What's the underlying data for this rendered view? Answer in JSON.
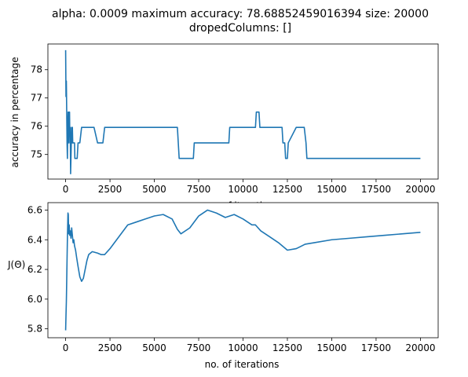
{
  "figure": {
    "title_line1": "alpha: 0.0009 maximum accuracy: 78.68852459016394 size: 20000",
    "title_line2": "dropedColumns: []"
  },
  "chart_data": [
    {
      "type": "line",
      "xlabel": "no. of iterations",
      "ylabel": "accuracy in percentage",
      "xlim": [
        -1000,
        21000
      ],
      "ylim": [
        74.13,
        78.91
      ],
      "xticks": [
        0,
        2500,
        5000,
        7500,
        10000,
        12500,
        15000,
        17500,
        20000
      ],
      "xtick_labels": [
        "0",
        "2500",
        "5000",
        "7500",
        "10000",
        "12500",
        "15000",
        "17500",
        "20000"
      ],
      "yticks": [
        75,
        76,
        77,
        78
      ],
      "ytick_labels": [
        "75",
        "76",
        "77",
        "78"
      ],
      "grid": false,
      "color": "#1f77b4",
      "series": [
        {
          "x": [
            0,
            20,
            40,
            60,
            80,
            100,
            120,
            140,
            160,
            180,
            200,
            220,
            240,
            260,
            280,
            300,
            320,
            340,
            360,
            380,
            400,
            420,
            440,
            460,
            480,
            500,
            520,
            560,
            600,
            650,
            700,
            750,
            800,
            900,
            1000,
            1100,
            1200,
            1400,
            1600,
            1800,
            1900,
            2000,
            2100,
            2200,
            3000,
            4000,
            5000,
            6000,
            6300,
            6350,
            6400,
            7000,
            7200,
            7250,
            8000,
            9000,
            9200,
            9250,
            10000,
            10700,
            10750,
            10900,
            10950,
            11500,
            12200,
            12250,
            12350,
            12400,
            12500,
            12550,
            13000,
            13400,
            13450,
            13550,
            13600,
            14000,
            16000,
            18000,
            20000
          ],
          "y": [
            78.69,
            77.05,
            77.6,
            76.5,
            75.41,
            74.86,
            75.96,
            76.5,
            75.41,
            76.5,
            75.96,
            76.5,
            75.41,
            75.96,
            74.32,
            74.86,
            75.41,
            75.96,
            75.41,
            75.96,
            75.41,
            75.41,
            75.41,
            75.41,
            75.41,
            75.41,
            74.86,
            74.86,
            74.86,
            74.86,
            75.41,
            75.41,
            75.41,
            75.96,
            75.96,
            75.96,
            75.96,
            75.96,
            75.96,
            75.41,
            75.41,
            75.41,
            75.41,
            75.96,
            75.96,
            75.96,
            75.96,
            75.96,
            75.96,
            75.41,
            74.86,
            74.86,
            74.86,
            75.41,
            75.41,
            75.41,
            75.41,
            75.96,
            75.96,
            75.96,
            76.5,
            76.5,
            75.96,
            75.96,
            75.96,
            75.41,
            75.41,
            74.86,
            74.86,
            75.41,
            75.96,
            75.96,
            75.96,
            75.41,
            74.86,
            74.86,
            74.86,
            74.86,
            74.86
          ]
        }
      ]
    },
    {
      "type": "line",
      "xlabel": "no. of iterations",
      "ylabel": "J(Θ)",
      "xlim": [
        -1000,
        21000
      ],
      "ylim": [
        5.74,
        6.65
      ],
      "xticks": [
        0,
        2500,
        5000,
        7500,
        10000,
        12500,
        15000,
        17500,
        20000
      ],
      "xtick_labels": [
        "0",
        "2500",
        "5000",
        "7500",
        "10000",
        "12500",
        "15000",
        "17500",
        "20000"
      ],
      "yticks": [
        5.8,
        6.0,
        6.2,
        6.4,
        6.6
      ],
      "ytick_labels": [
        "5.8",
        "6.0",
        "6.2",
        "6.4",
        "6.6"
      ],
      "grid": false,
      "color": "#1f77b4",
      "series": [
        {
          "x": [
            0,
            20,
            40,
            60,
            80,
            100,
            130,
            150,
            170,
            200,
            230,
            260,
            300,
            340,
            380,
            420,
            460,
            500,
            560,
            620,
            700,
            800,
            900,
            1000,
            1100,
            1200,
            1300,
            1500,
            1800,
            2000,
            2200,
            2500,
            3000,
            3500,
            4000,
            4500,
            5000,
            5500,
            6000,
            6300,
            6500,
            7000,
            7500,
            8000,
            8500,
            9000,
            9500,
            10000,
            10500,
            10700,
            11000,
            11500,
            12000,
            12500,
            13000,
            13500,
            14000,
            15000,
            16000,
            17000,
            18000,
            19000,
            20000
          ],
          "y": [
            5.79,
            5.89,
            5.98,
            6.12,
            6.27,
            6.41,
            6.58,
            6.57,
            6.44,
            6.5,
            6.43,
            6.46,
            6.41,
            6.48,
            6.43,
            6.38,
            6.4,
            6.36,
            6.33,
            6.28,
            6.22,
            6.15,
            6.12,
            6.14,
            6.2,
            6.26,
            6.3,
            6.32,
            6.31,
            6.3,
            6.3,
            6.34,
            6.42,
            6.5,
            6.52,
            6.54,
            6.56,
            6.57,
            6.54,
            6.47,
            6.44,
            6.48,
            6.56,
            6.6,
            6.58,
            6.55,
            6.57,
            6.54,
            6.5,
            6.5,
            6.46,
            6.42,
            6.38,
            6.33,
            6.34,
            6.37,
            6.38,
            6.4,
            6.41,
            6.42,
            6.43,
            6.44,
            6.45
          ]
        }
      ]
    }
  ]
}
